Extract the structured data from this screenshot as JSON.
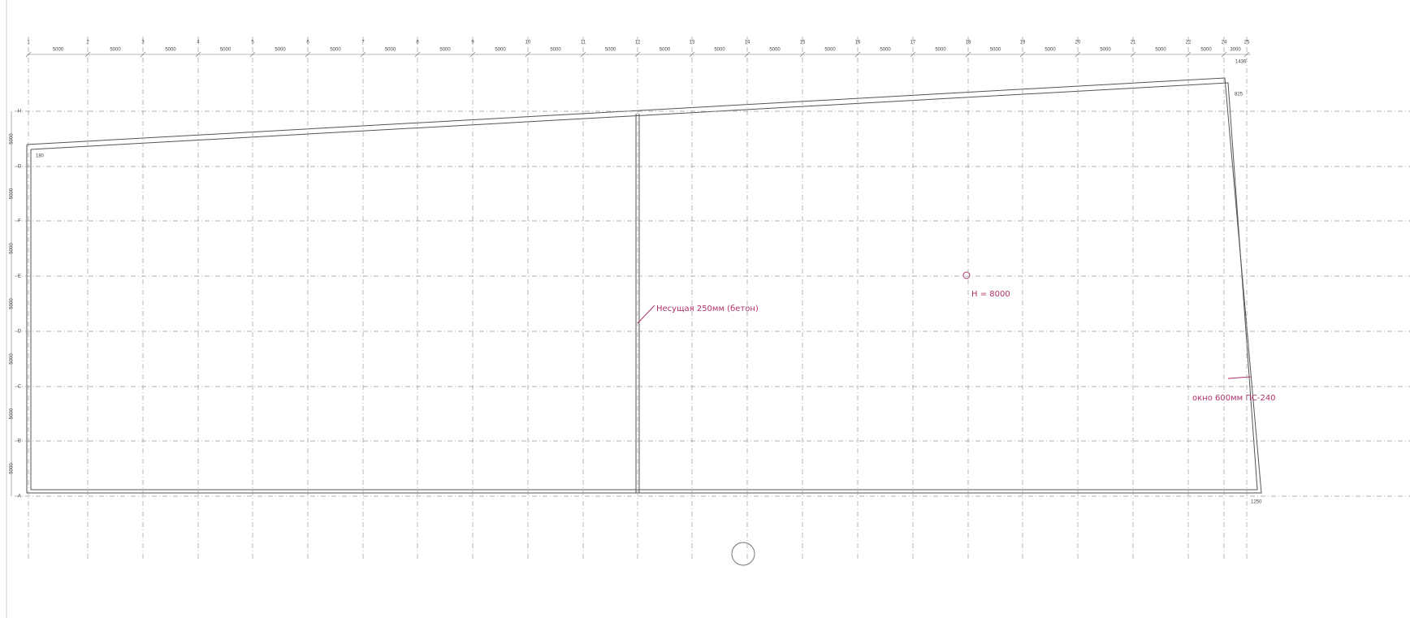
{
  "drawing": {
    "columns": [
      "1",
      "2",
      "3",
      "4",
      "5",
      "6",
      "7",
      "8",
      "9",
      "10",
      "11",
      "12",
      "13",
      "14",
      "15",
      "16",
      "17",
      "18",
      "19",
      "20",
      "21",
      "22",
      "24",
      "25"
    ],
    "column_spacings": [
      "5000",
      "5000",
      "5000",
      "5000",
      "5000",
      "5000",
      "5000",
      "5000",
      "5000",
      "5000",
      "5000",
      "5000",
      "5000",
      "5000",
      "5000",
      "5000",
      "5000",
      "5000",
      "5000",
      "5000",
      "5000",
      "5000",
      "3000"
    ],
    "rows": [
      "H",
      "G",
      "F",
      "E",
      "D",
      "C",
      "B",
      "A"
    ],
    "row_spacings": [
      "5000",
      "5000",
      "5000",
      "5000",
      "5000",
      "5000",
      "5000"
    ],
    "edge_dims": {
      "top_right": "1436",
      "right_offset": "825",
      "left_offset": "180",
      "bottom_right": "1250"
    },
    "annotations": {
      "wall": "Несущая 250мм (бетон)",
      "height": "H = 8000",
      "window": "окно 600мм ПС-240"
    }
  }
}
